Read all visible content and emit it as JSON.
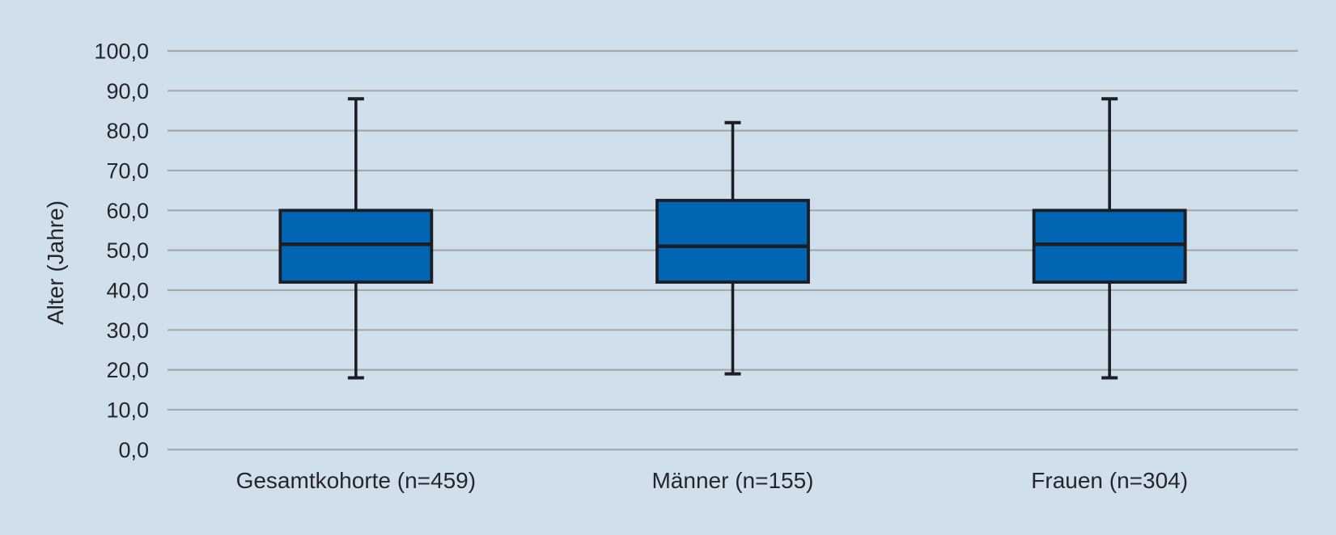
{
  "figure": {
    "name": "age-distribution-boxplot"
  },
  "chart_data": {
    "type": "boxplot",
    "title": "",
    "xlabel": "",
    "ylabel": "Alter (Jahre)",
    "ylim": [
      0,
      100
    ],
    "ytick_interval": 10,
    "grid": true,
    "legend": "none",
    "yticks": [
      {
        "value": 100,
        "label": "100,0"
      },
      {
        "value": 90,
        "label": "90,0"
      },
      {
        "value": 80,
        "label": "80,0"
      },
      {
        "value": 70,
        "label": "70,0"
      },
      {
        "value": 60,
        "label": "60,0"
      },
      {
        "value": 50,
        "label": "50,0"
      },
      {
        "value": 40,
        "label": "40,0"
      },
      {
        "value": 30,
        "label": "30,0"
      },
      {
        "value": 20,
        "label": "20,0"
      },
      {
        "value": 10,
        "label": "10,0"
      },
      {
        "value": 0,
        "label": "0,0"
      }
    ],
    "categories": [
      "Gesamtkohorte (n=459)",
      "Männer (n=155)",
      "Frauen (n=304)"
    ],
    "series": [
      {
        "name": "Gesamtkohorte (n=459)",
        "min": 18,
        "q1": 42,
        "median": 51.5,
        "q3": 60,
        "max": 88
      },
      {
        "name": "Männer (n=155)",
        "min": 19,
        "q1": 42,
        "median": 51,
        "q3": 62.5,
        "max": 82
      },
      {
        "name": "Frauen (n=304)",
        "min": 18,
        "q1": 42,
        "median": 51.5,
        "q3": 60,
        "max": 88
      }
    ],
    "colors": {
      "background": "#cfe0ec",
      "box_fill": "#0065b2",
      "box_stroke": "#1d1d26",
      "median_stroke": "#1d1d26",
      "whisker_stroke": "#1d1d26",
      "gridline": "#a7a7a7",
      "text": "#27252a"
    }
  }
}
